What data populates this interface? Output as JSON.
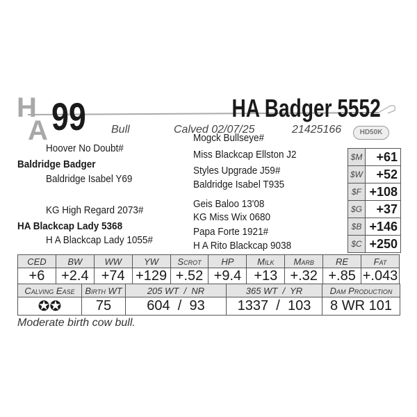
{
  "logo": {
    "text_top": "H",
    "text_bottom": "A"
  },
  "lot_number": "99",
  "animal_name": "HA Badger 5552",
  "sex": "Bull",
  "calved": "Calved 02/07/25",
  "registration": "21425166",
  "badge": "HD50K",
  "pedigree": {
    "sire": "Baldridge Badger",
    "sire_sire": "Hoover No Doubt#",
    "sire_dam": "Baldridge Isabel Y69",
    "sire_sire_sire": "Mogck Bullseye#",
    "sire_sire_dam": "Miss Blackcap Ellston J2",
    "sire_dam_sire": "Styles Upgrade J59#",
    "sire_dam_dam": "Baldridge Isabel T935",
    "dam": "HA Blackcap Lady 5368",
    "dam_sire": "KG High Regard 2073#",
    "dam_dam": "H A Blackcap Lady 1055#",
    "dam_sire_sire": "Geis Baloo 13'08",
    "dam_sire_dam": "KG Miss Wix 0680",
    "dam_dam_sire": "Papa Forte 1921#",
    "dam_dam_dam": "H A Rito Blackcap 9038"
  },
  "indexes": [
    {
      "label": "$M",
      "value": "+61"
    },
    {
      "label": "$W",
      "value": "+52"
    },
    {
      "label": "$F",
      "value": "+108"
    },
    {
      "label": "$G",
      "value": "+37"
    },
    {
      "label": "$B",
      "value": "+146"
    },
    {
      "label": "$C",
      "value": "+250"
    }
  ],
  "epds": [
    {
      "label": "CED",
      "value": "+6"
    },
    {
      "label": "BW",
      "value": "+2.4"
    },
    {
      "label": "WW",
      "value": "+74"
    },
    {
      "label": "YW",
      "value": "+129"
    },
    {
      "label": "Scrot",
      "value": "+.52"
    },
    {
      "label": "HP",
      "value": "+9.4"
    },
    {
      "label": "Milk",
      "value": "+13"
    },
    {
      "label": "Marb",
      "value": "+.32"
    },
    {
      "label": "RE",
      "value": "+.85"
    },
    {
      "label": "Fat",
      "value": "+.043"
    }
  ],
  "performance": [
    {
      "label": "Calving Ease",
      "value": "✪✪"
    },
    {
      "label": "Birth WT",
      "value": "75"
    },
    {
      "label": "205 WT  /  NR",
      "value": "604  /  93"
    },
    {
      "label": "365 WT  /  YR",
      "value": "1337  /  103"
    },
    {
      "label": "Dam Production",
      "value": "8 WR 101"
    }
  ],
  "comment": "Moderate birth cow bull."
}
